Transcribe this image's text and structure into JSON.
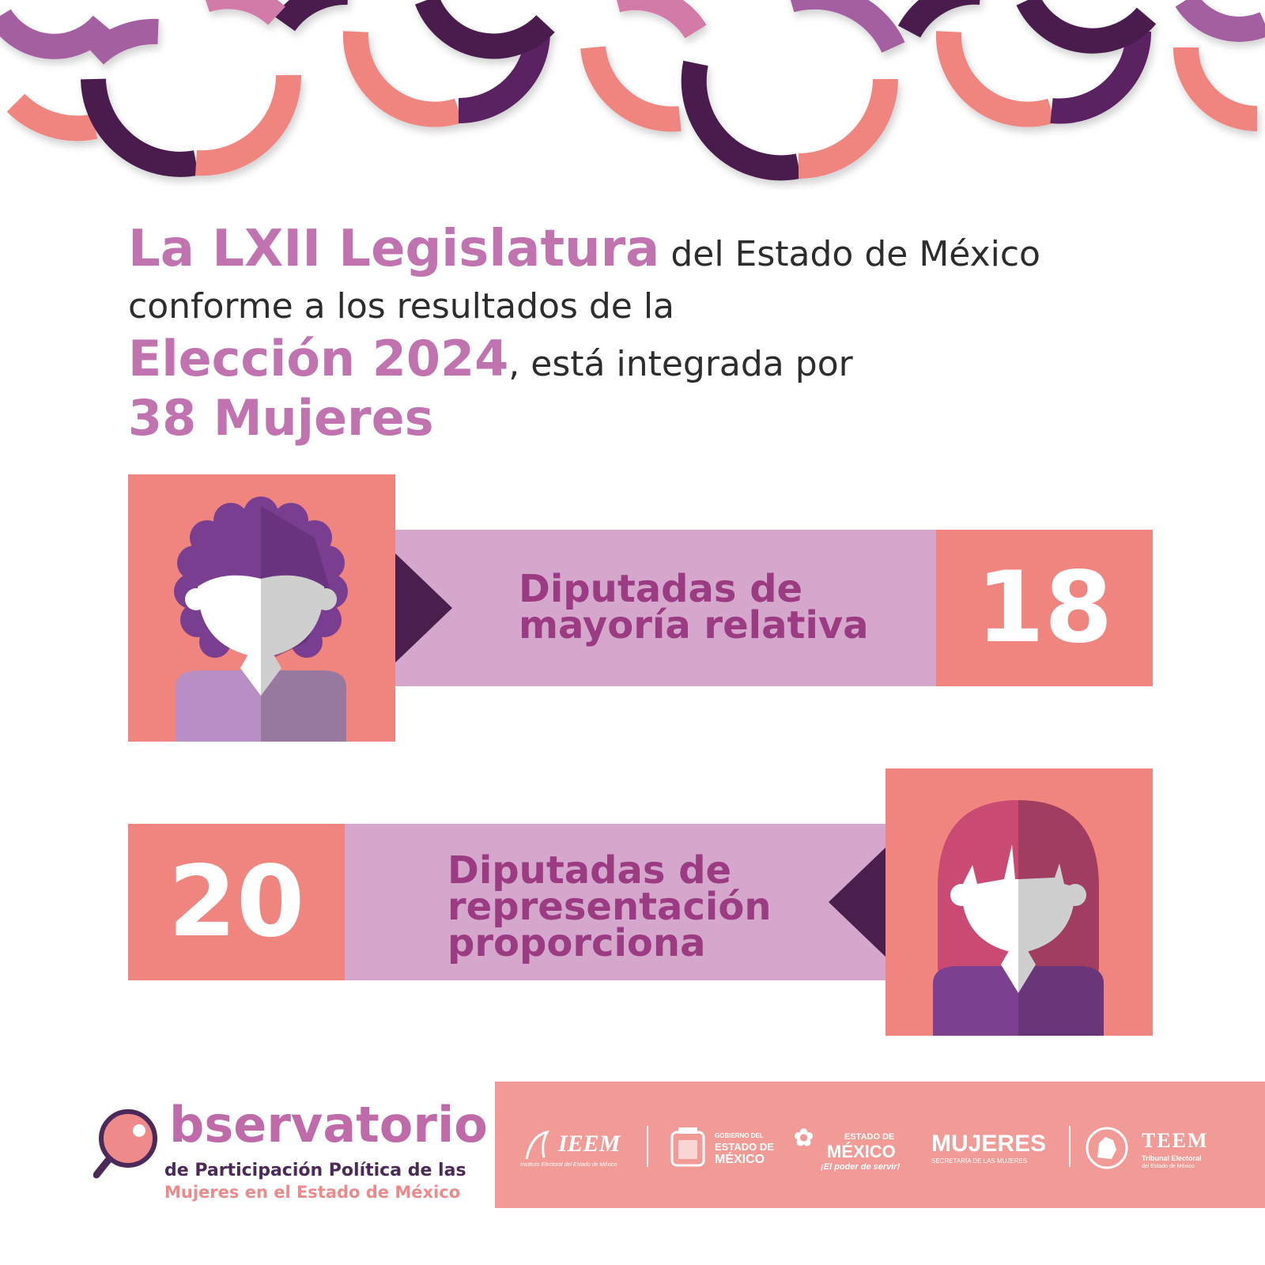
{
  "headline": {
    "line1_highlight": "La LXII Legislatura",
    "line1_rest": "del Estado de México",
    "line2": "conforme a los resultados de la",
    "line3_highlight": "Elección 2024",
    "line3_rest": ", está integrada por",
    "line4_highlight": "38 Mujeres"
  },
  "rows": [
    {
      "label_lines": [
        "Diputadas de",
        "mayoría relativa"
      ],
      "count": "18"
    },
    {
      "label_lines": [
        "Diputadas de",
        "representación",
        "proporciona"
      ],
      "count": "20"
    }
  ],
  "chart_data": {
    "type": "bar",
    "categories": [
      "Diputadas de mayoría relativa",
      "Diputadas de representación proporciona"
    ],
    "values": [
      18,
      20
    ]
  },
  "observatorio": {
    "title": "bservatorio",
    "line2": "de Participación Política de las",
    "line3": "Mujeres en el Estado de México"
  },
  "partner_logos": {
    "ieem": "IEEM",
    "ieem_sub": "Instituto Electoral del Estado de México",
    "gobierno_small": "GOBIERNO DEL",
    "gobierno_mid": "ESTADO DE",
    "gobierno_big": "MÉXICO",
    "edomex_small": "ESTADO DE",
    "edomex_big": "MÉXICO",
    "edomex_tag": "¡El poder de servir!",
    "mujeres": "MUJERES",
    "mujeres_sub": "SECRETARÍA DE LAS MUJERES",
    "teem": "TEEM",
    "teem_sub1": "Tribunal Electoral",
    "teem_sub2": "del Estado de México"
  },
  "colors": {
    "coral": "#f08580",
    "band": "#d5a7cd",
    "purple_dark": "#4a1f4e",
    "highlight": "#c173b0",
    "label": "#9b3b82"
  }
}
